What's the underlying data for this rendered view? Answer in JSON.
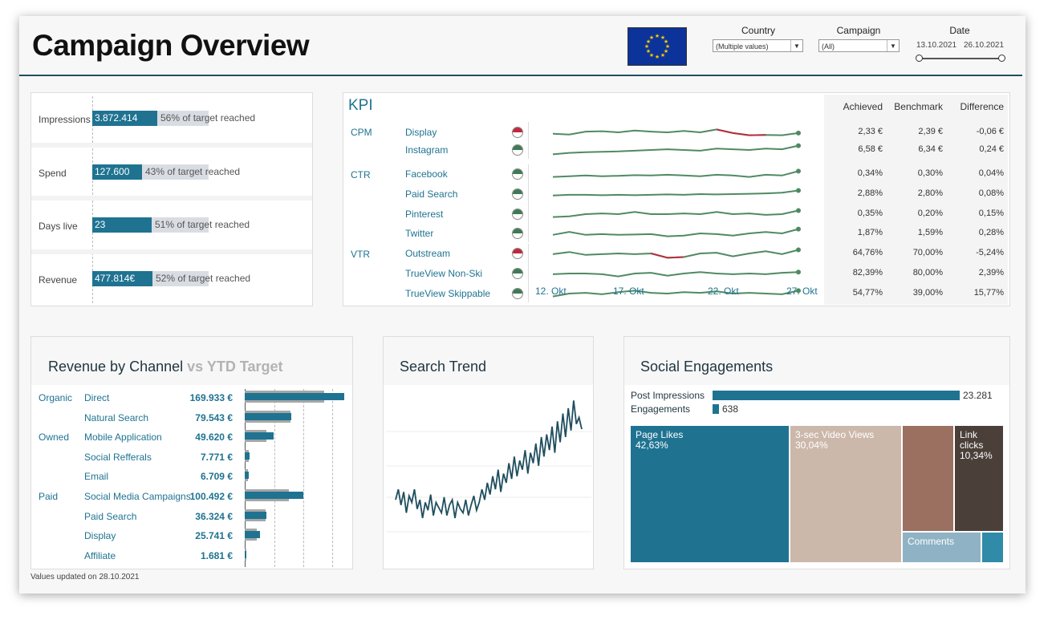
{
  "header": {
    "title": "Campaign Overview",
    "filters": {
      "country": {
        "label": "Country",
        "value": "(Multiple values)"
      },
      "campaign": {
        "label": "Campaign",
        "value": "(All)"
      },
      "date": {
        "label": "Date",
        "start": "13.10.2021",
        "end": "26.10.2021"
      }
    }
  },
  "metrics": [
    {
      "label": "Impressions",
      "value": "3.872.414",
      "text": "56% of target reached",
      "progress": 0.56
    },
    {
      "label": "Spend",
      "value": "127.600",
      "text": "43% of target reached",
      "progress": 0.43
    },
    {
      "label": "Days live",
      "value": "23",
      "text": "51% of target reached",
      "progress": 0.51
    },
    {
      "label": "Revenue",
      "value": "477.814€",
      "text": "52% of target reached",
      "progress": 0.52
    }
  ],
  "kpi": {
    "title": "KPI",
    "headers": {
      "achieved": "Achieved",
      "benchmark": "Benchmark",
      "difference": "Difference"
    },
    "axis": [
      "12. Okt",
      "17. Okt",
      "22. Okt",
      "27. Okt"
    ],
    "groups": [
      {
        "name": "CPM",
        "rows": [
          {
            "channel": "Display",
            "status": "bad",
            "achieved": "2,33 €",
            "benchmark": "2,39 €",
            "difference": "-0,06 €"
          },
          {
            "channel": "Instagram",
            "status": "good",
            "achieved": "6,58 €",
            "benchmark": "6,34 €",
            "difference": "0,24 €"
          }
        ]
      },
      {
        "name": "CTR",
        "rows": [
          {
            "channel": "Facebook",
            "status": "good",
            "achieved": "0,34%",
            "benchmark": "0,30%",
            "difference": "0,04%"
          },
          {
            "channel": "Paid Search",
            "status": "good",
            "achieved": "2,88%",
            "benchmark": "2,80%",
            "difference": "0,08%"
          },
          {
            "channel": "Pinterest",
            "status": "good",
            "achieved": "0,35%",
            "benchmark": "0,20%",
            "difference": "0,15%"
          },
          {
            "channel": "Twitter",
            "status": "good",
            "achieved": "1,87%",
            "benchmark": "1,59%",
            "difference": "0,28%"
          }
        ]
      },
      {
        "name": "VTR",
        "rows": [
          {
            "channel": "Outstream",
            "status": "bad",
            "achieved": "64,76%",
            "benchmark": "70,00%",
            "difference": "-5,24%"
          },
          {
            "channel": "TrueView Non-Ski",
            "status": "good",
            "achieved": "82,39%",
            "benchmark": "80,00%",
            "difference": "2,39%"
          },
          {
            "channel": "TrueView Skippable",
            "status": "good",
            "achieved": "54,77%",
            "benchmark": "39,00%",
            "difference": "15,77%"
          }
        ]
      }
    ],
    "colors": {
      "good": "#3d7a55",
      "bad": "#c0283c",
      "line": "#4f8a62",
      "bad_line": "#b5303f"
    }
  },
  "revenue": {
    "title": "Revenue by Channel",
    "title_suffix": "vs YTD Target",
    "groups": [
      {
        "name": "Organic",
        "channels": [
          {
            "name": "Direct",
            "value": "169.933 €",
            "actual": 169933,
            "target": 135000
          },
          {
            "name": "Natural Search",
            "value": "79.543 €",
            "actual": 79543,
            "target": 78000
          }
        ]
      },
      {
        "name": "Owned",
        "channels": [
          {
            "name": "Mobile Application",
            "value": "49.620 €",
            "actual": 49620,
            "target": 37000
          },
          {
            "name": "Social Refferals",
            "value": "7.771 €",
            "actual": 7771,
            "target": 6500
          },
          {
            "name": "Email",
            "value": "6.709 €",
            "actual": 6709,
            "target": 5500
          }
        ]
      },
      {
        "name": "Paid",
        "channels": [
          {
            "name": "Social Media Campaigns",
            "value": "100.492 €",
            "actual": 100492,
            "target": 75000
          },
          {
            "name": "Paid Search",
            "value": "36.324 €",
            "actual": 36324,
            "target": 36000
          },
          {
            "name": "Display",
            "value": "25.741 €",
            "actual": 25741,
            "target": 21000
          },
          {
            "name": "Affiliate",
            "value": "1.681 €",
            "actual": 1681,
            "target": 1400
          }
        ]
      }
    ]
  },
  "search_trend": {
    "title": "Search Trend"
  },
  "social": {
    "title": "Social Engagements",
    "bars": [
      {
        "label": "Post Impressions",
        "value": "23.281",
        "num": 23281
      },
      {
        "label": "Engagements",
        "value": "638",
        "num": 638
      }
    ],
    "treemap": [
      {
        "label": "Page Likes",
        "pct": "42,63%",
        "color": "#1f7391"
      },
      {
        "label": "3-sec Video Views",
        "pct": "30,04%",
        "color": "#ccb8ab"
      },
      {
        "label": "",
        "pct": "",
        "color": "#9b7060"
      },
      {
        "label": "Link clicks",
        "pct": "10,34%",
        "color": "#4a3f39"
      },
      {
        "label": "Comments",
        "pct": "",
        "color": "#8fb3c4"
      },
      {
        "label": "",
        "pct": "",
        "color": "#2f8ba8"
      }
    ]
  },
  "footer": "Values updated on 28.10.2021",
  "chart_data": [
    {
      "type": "line",
      "title": "Search Trend",
      "series": [
        {
          "values": [
            0.22,
            0.3,
            0.18,
            0.28,
            0.12,
            0.25,
            0.2,
            0.3,
            0.15,
            0.22,
            0.08,
            0.2,
            0.14,
            0.26,
            0.1,
            0.2,
            0.16,
            0.12,
            0.24,
            0.1,
            0.18,
            0.22,
            0.08,
            0.2,
            0.15,
            0.12,
            0.22,
            0.1,
            0.18,
            0.25,
            0.14,
            0.2,
            0.3,
            0.22,
            0.35,
            0.26,
            0.4,
            0.3,
            0.45,
            0.28,
            0.42,
            0.35,
            0.5,
            0.38,
            0.55,
            0.4,
            0.52,
            0.45,
            0.6,
            0.42,
            0.58,
            0.5,
            0.65,
            0.48,
            0.7,
            0.55,
            0.72,
            0.6,
            0.78,
            0.58,
            0.82,
            0.66,
            0.88,
            0.7,
            0.92,
            0.75,
            0.98,
            0.8,
            0.85,
            0.76
          ]
        }
      ]
    }
  ]
}
